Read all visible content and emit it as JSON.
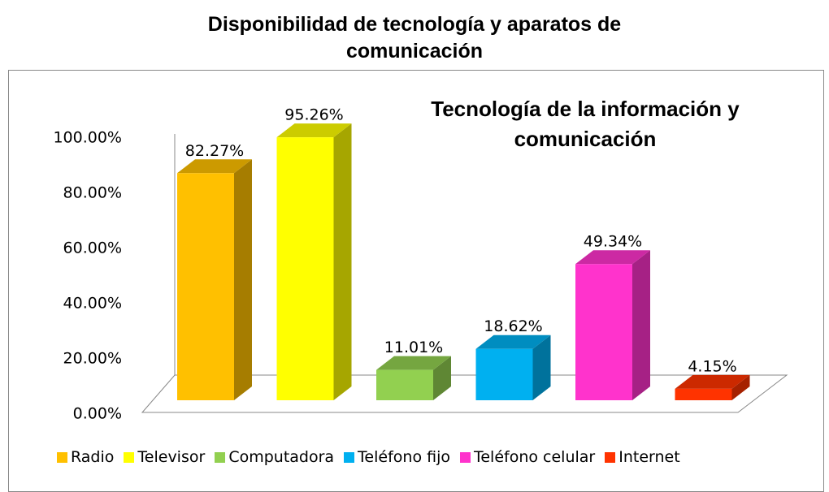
{
  "chart_data": {
    "type": "bar3d",
    "title": "Disponibilidad de tecnología y aparatos de comunicación",
    "subtitle": "Tecnología de la información y comunicación",
    "categories": [
      "Radio",
      "Televisor",
      "Computadora",
      "Teléfono fijo",
      "Teléfono celular",
      "Internet"
    ],
    "values": [
      82.27,
      95.26,
      11.01,
      18.62,
      49.34,
      4.15
    ],
    "value_labels": [
      "82.27%",
      "95.26%",
      "11.01%",
      "18.62%",
      "49.34%",
      "4.15%"
    ],
    "colors": [
      "#FFC000",
      "#FFFF00",
      "#92D050",
      "#00B0F0",
      "#FF33CC",
      "#FF3300"
    ],
    "ylim": [
      0,
      100
    ],
    "yticks": [
      {
        "value": 0,
        "label": "0.00%"
      },
      {
        "value": 20,
        "label": "20.00%"
      },
      {
        "value": 40,
        "label": "40.00%"
      },
      {
        "value": 60,
        "label": "60.00%"
      },
      {
        "value": 80,
        "label": "80.00%"
      },
      {
        "value": 100,
        "label": "100.00%"
      }
    ],
    "legend": "bottom"
  }
}
